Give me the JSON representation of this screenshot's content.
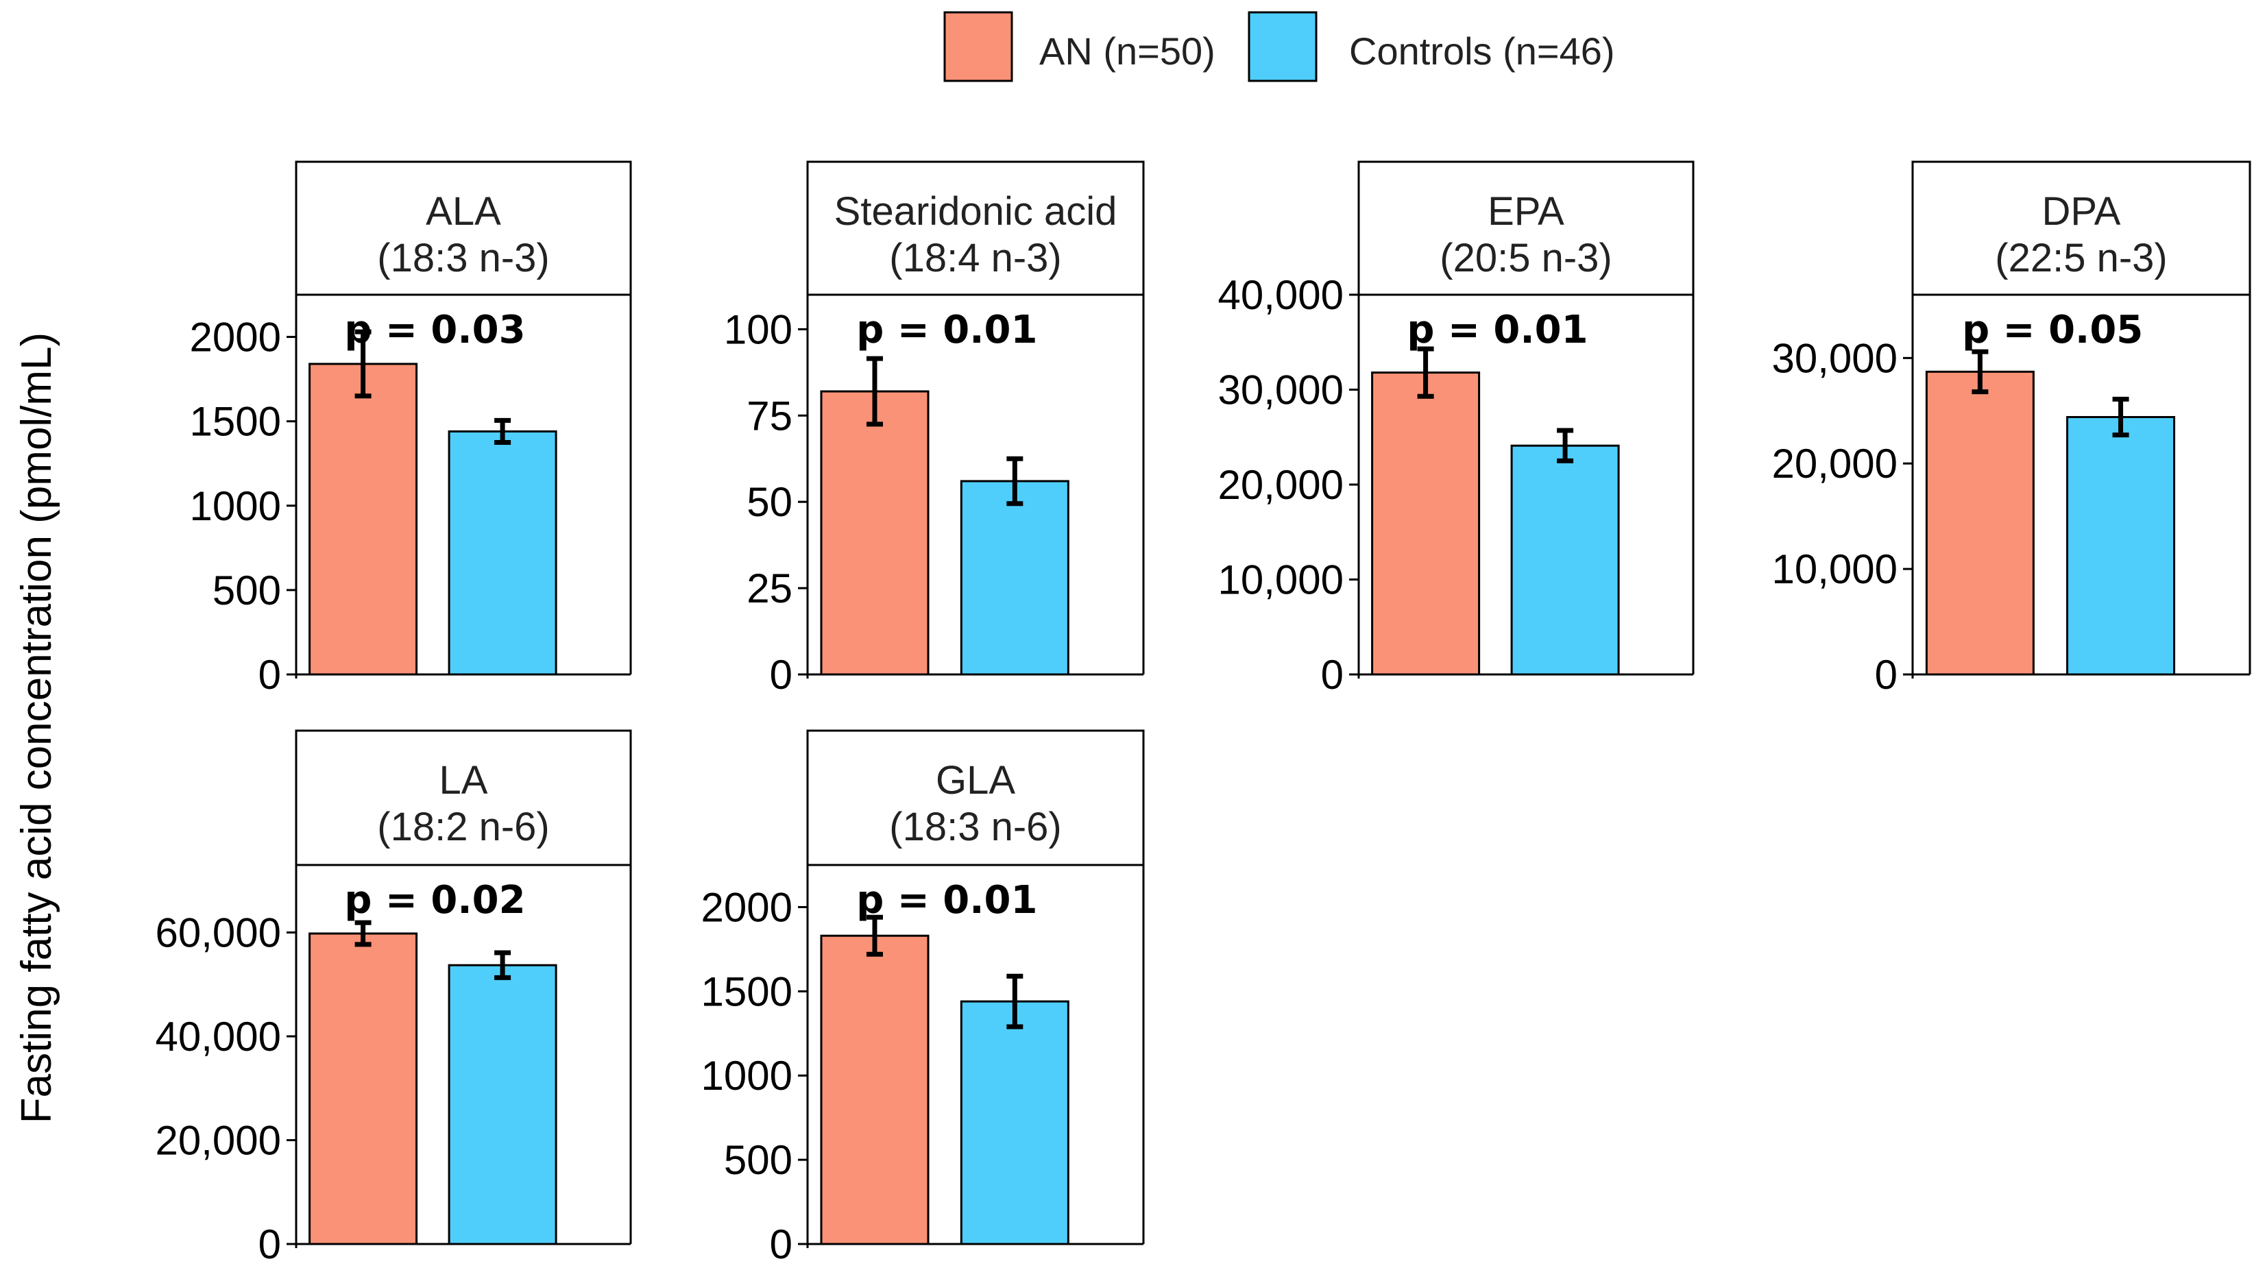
{
  "colors": {
    "an": "#FA9277",
    "controls": "#4FCEFB",
    "axis": "#000000",
    "strip_bg": "#FFFFFF"
  },
  "legend": {
    "items": [
      {
        "label": "AN (n=50)",
        "color": "#FA9277"
      },
      {
        "label": "Controls (n=46)",
        "color": "#4FCEFB"
      }
    ]
  },
  "y_axis_label": "Fasting fatty acid concentration (pmol/mL)",
  "chart_data": [
    {
      "type": "bar",
      "title": "ALA",
      "subtitle": "(18:3 n-3)",
      "p_value": "p = 0.03",
      "categories": [
        "AN (n=50)",
        "Controls (n=46)"
      ],
      "values": [
        1840,
        1440
      ],
      "errors": [
        190,
        65
      ],
      "ylim": [
        0,
        2250
      ],
      "ticks": [
        0,
        500,
        1000,
        1500,
        2000
      ],
      "tick_labels": [
        "0",
        "500",
        "1000",
        "1500",
        "2000"
      ]
    },
    {
      "type": "bar",
      "title": "Stearidonic acid",
      "subtitle": "(18:4 n-3)",
      "p_value": "p = 0.01",
      "categories": [
        "AN (n=50)",
        "Controls (n=46)"
      ],
      "values": [
        82,
        56
      ],
      "errors": [
        9.5,
        6.5
      ],
      "ylim": [
        0,
        110
      ],
      "ticks": [
        0,
        25,
        50,
        75,
        100
      ],
      "tick_labels": [
        "0",
        "25",
        "50",
        "75",
        "100"
      ]
    },
    {
      "type": "bar",
      "title": "EPA",
      "subtitle": "(20:5 n-3)",
      "p_value": "p = 0.01",
      "categories": [
        "AN (n=50)",
        "Controls (n=46)"
      ],
      "values": [
        31800,
        24100
      ],
      "errors": [
        2500,
        1600
      ],
      "ylim": [
        0,
        40000
      ],
      "ticks": [
        0,
        10000,
        20000,
        30000,
        40000
      ],
      "tick_labels": [
        "0",
        "10,000",
        "20,000",
        "30,000",
        "40,000"
      ]
    },
    {
      "type": "bar",
      "title": "DPA",
      "subtitle": "(22:5 n-3)",
      "p_value": "p = 0.05",
      "categories": [
        "AN (n=50)",
        "Controls (n=46)"
      ],
      "values": [
        28700,
        24400
      ],
      "errors": [
        1900,
        1700
      ],
      "ylim": [
        0,
        36000
      ],
      "ticks": [
        0,
        10000,
        20000,
        30000
      ],
      "tick_labels": [
        "0",
        "10,000",
        "20,000",
        "30,000"
      ]
    },
    {
      "type": "bar",
      "title": "LA",
      "subtitle": "(18:2 n-6)",
      "p_value": "p = 0.02",
      "categories": [
        "AN (n=50)",
        "Controls (n=46)"
      ],
      "values": [
        59800,
        53700
      ],
      "errors": [
        2100,
        2400
      ],
      "ylim": [
        0,
        73000
      ],
      "ticks": [
        0,
        20000,
        40000,
        60000
      ],
      "tick_labels": [
        "0",
        "20,000",
        "40,000",
        "60,000"
      ]
    },
    {
      "type": "bar",
      "title": "GLA",
      "subtitle": "(18:3 n-6)",
      "p_value": "p = 0.01",
      "categories": [
        "AN (n=50)",
        "Controls (n=46)"
      ],
      "values": [
        1830,
        1440
      ],
      "errors": [
        110,
        150
      ],
      "ylim": [
        0,
        2250
      ],
      "ticks": [
        0,
        500,
        1000,
        1500,
        2000
      ],
      "tick_labels": [
        "0",
        "500",
        "1000",
        "1500",
        "2000"
      ]
    }
  ]
}
